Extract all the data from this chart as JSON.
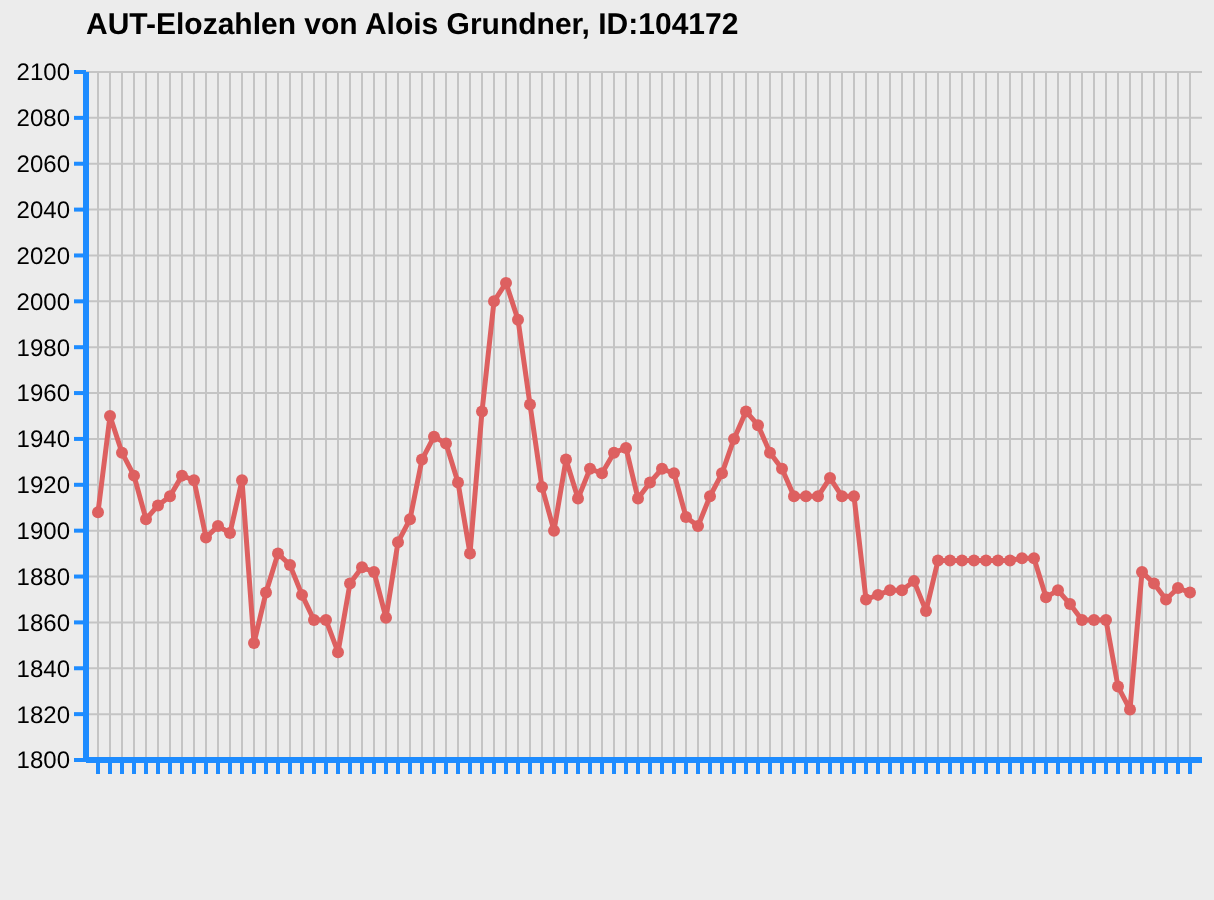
{
  "chart_data": {
    "type": "line",
    "title": "AUT-Elozahlen von Alois Grundner, ID:104172",
    "categories": [
      null,
      null,
      null,
      null,
      null,
      null,
      null,
      null,
      null,
      null,
      null,
      null,
      null,
      null,
      null,
      null,
      null,
      null,
      null,
      null,
      null,
      null,
      null,
      null,
      null,
      null,
      null,
      null,
      null,
      null,
      null,
      null,
      null,
      null,
      null,
      null,
      null,
      null,
      null,
      null,
      null,
      null,
      null,
      null,
      null,
      null,
      null,
      null,
      null,
      null,
      null,
      null,
      null,
      null,
      null,
      null,
      null,
      null,
      null,
      null,
      null,
      null,
      null,
      null,
      null,
      null,
      null,
      null,
      null,
      null,
      null,
      null,
      null,
      null,
      null,
      null,
      null,
      null,
      null,
      null,
      null,
      null,
      null,
      null,
      null,
      null,
      null,
      null,
      null,
      null,
      null,
      null
    ],
    "series": [
      {
        "color": "#dd6060",
        "values": [
          1908,
          1950,
          1934,
          1924,
          1905,
          1911,
          1915,
          1924,
          1922,
          1897,
          1902,
          1899,
          1922,
          1851,
          1873,
          1890,
          1885,
          1872,
          1861,
          1861,
          1847,
          1877,
          1884,
          1882,
          1862,
          1895,
          1905,
          1931,
          1941,
          1938,
          1921,
          1890,
          1952,
          2000,
          2008,
          1992,
          1955,
          1919,
          1900,
          1931,
          1914,
          1927,
          1925,
          1934,
          1936,
          1914,
          1921,
          1927,
          1925,
          1906,
          1902,
          1915,
          1925,
          1940,
          1952,
          1946,
          1934,
          1927,
          1915,
          1915,
          1915,
          1923,
          1915,
          1915,
          1870,
          1872,
          1874,
          1874,
          1878,
          1865,
          1887,
          1887,
          1887,
          1887,
          1887,
          1887,
          1887,
          1888,
          1888,
          1871,
          1874,
          1868,
          1861,
          1861,
          1861,
          1832,
          1822,
          1882,
          1877,
          1870,
          1875,
          1873
        ]
      }
    ],
    "ylim": [
      1800,
      2100
    ],
    "yticks": [
      1800,
      1820,
      1840,
      1860,
      1880,
      1900,
      1920,
      1940,
      1960,
      1980,
      2000,
      2020,
      2040,
      2060,
      2080,
      2100
    ],
    "grid": true,
    "marker": "circle",
    "line_style": "solid"
  }
}
